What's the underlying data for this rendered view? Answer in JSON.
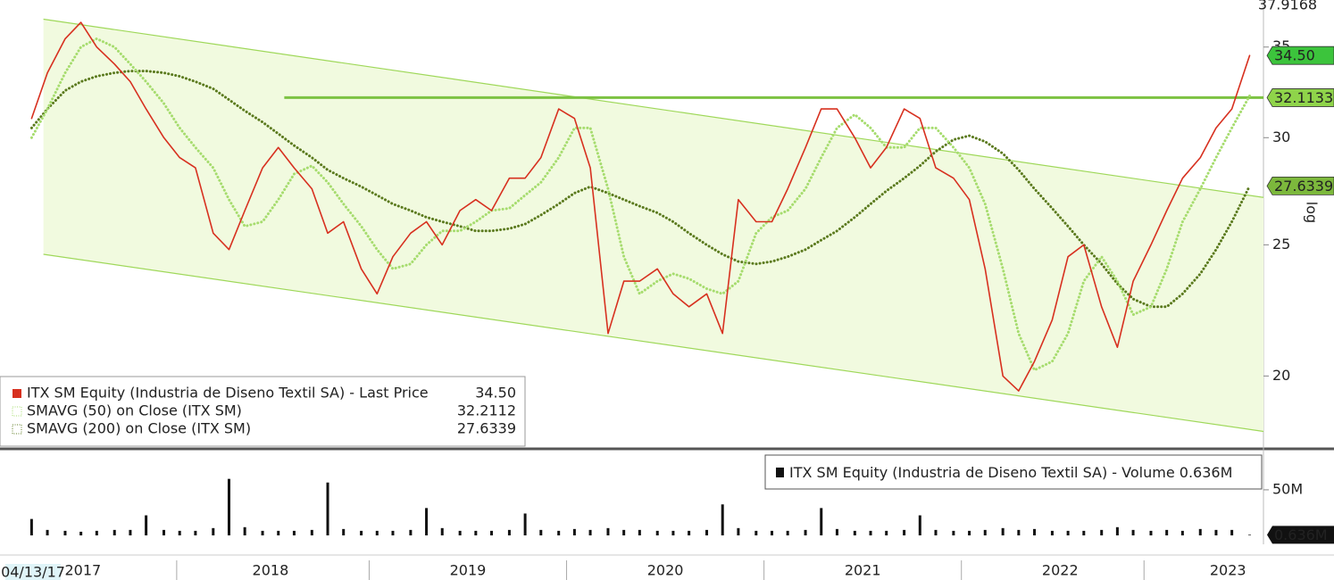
{
  "chart_data": [
    {
      "type": "line",
      "log": true,
      "ylim": [
        17.75,
        37.9168
      ],
      "yticks": [
        20,
        25,
        30,
        35
      ],
      "axis_label": "log",
      "date_label": "04/13/17",
      "xlim": [
        2017.13,
        2023.53
      ],
      "xticks": [
        {
          "value": 2017.55,
          "label": "2017"
        },
        {
          "value": 2018.5,
          "label": "2018"
        },
        {
          "value": 2019.5,
          "label": "2019"
        },
        {
          "value": 2020.5,
          "label": "2020"
        },
        {
          "value": 2021.5,
          "label": "2021"
        },
        {
          "value": 2022.5,
          "label": "2022"
        },
        {
          "value": 2023.35,
          "label": "2023"
        }
      ],
      "x": [
        2017.29,
        2017.37,
        2017.46,
        2017.54,
        2017.62,
        2017.71,
        2017.79,
        2017.87,
        2017.96,
        2018.04,
        2018.12,
        2018.21,
        2018.29,
        2018.37,
        2018.46,
        2018.54,
        2018.62,
        2018.71,
        2018.79,
        2018.87,
        2018.96,
        2019.04,
        2019.12,
        2019.21,
        2019.29,
        2019.37,
        2019.46,
        2019.54,
        2019.62,
        2019.71,
        2019.79,
        2019.87,
        2019.96,
        2020.04,
        2020.12,
        2020.21,
        2020.29,
        2020.37,
        2020.46,
        2020.54,
        2020.62,
        2020.71,
        2020.79,
        2020.87,
        2020.96,
        2021.04,
        2021.12,
        2021.21,
        2021.29,
        2021.37,
        2021.46,
        2021.54,
        2021.62,
        2021.71,
        2021.79,
        2021.87,
        2021.96,
        2022.04,
        2022.12,
        2022.21,
        2022.29,
        2022.37,
        2022.46,
        2022.54,
        2022.62,
        2022.71,
        2022.79,
        2022.87,
        2022.96,
        2023.04,
        2023.12,
        2023.21,
        2023.29,
        2023.37,
        2023.46
      ],
      "series": [
        {
          "name": "ITX SM Equity (Industria de Diseno Textil SA) - Last Price",
          "color": "#d7301f",
          "last_label": "34.50",
          "values": [
            31.0,
            33.5,
            35.5,
            36.5,
            35.0,
            34.0,
            33.0,
            31.5,
            30.0,
            29.0,
            28.5,
            25.5,
            24.8,
            26.5,
            28.5,
            29.5,
            28.5,
            27.5,
            25.5,
            26.0,
            24.0,
            23.0,
            24.5,
            25.5,
            26.0,
            25.0,
            26.5,
            27.0,
            26.5,
            28.0,
            28.0,
            29.0,
            31.5,
            31.0,
            28.5,
            21.5,
            23.5,
            23.5,
            24.0,
            23.0,
            22.5,
            23.0,
            21.5,
            27.0,
            26.0,
            26.0,
            27.5,
            29.5,
            31.5,
            31.5,
            30.0,
            28.5,
            29.5,
            31.5,
            31.0,
            28.5,
            28.0,
            27.0,
            24.0,
            20.0,
            19.5,
            20.5,
            22.0,
            24.5,
            25.0,
            22.5,
            21.0,
            23.5,
            25.0,
            26.5,
            28.0,
            29.0,
            30.5,
            31.5,
            34.5
          ]
        },
        {
          "name": "SMAVG (50)  on Close (ITX SM)",
          "color": "#a6dc6e",
          "last_label": "32.2112",
          "values": [
            30.0,
            31.5,
            33.5,
            35.0,
            35.5,
            35.0,
            34.0,
            33.0,
            31.8,
            30.5,
            29.5,
            28.5,
            27.0,
            25.8,
            26.0,
            27.0,
            28.2,
            28.6,
            27.8,
            26.8,
            25.8,
            24.8,
            24.0,
            24.2,
            25.0,
            25.6,
            25.6,
            26.0,
            26.5,
            26.6,
            27.2,
            27.8,
            29.0,
            30.5,
            30.5,
            27.5,
            24.5,
            23.0,
            23.5,
            23.8,
            23.6,
            23.2,
            23.0,
            23.5,
            25.5,
            26.2,
            26.5,
            27.5,
            29.0,
            30.5,
            31.2,
            30.5,
            29.5,
            29.5,
            30.5,
            30.5,
            29.5,
            28.5,
            26.8,
            24.0,
            21.5,
            20.2,
            20.5,
            21.5,
            23.5,
            24.5,
            23.5,
            22.2,
            22.5,
            24.0,
            26.0,
            27.5,
            29.0,
            30.5,
            32.2112
          ]
        },
        {
          "name": "SMAVG (200)  on Close (ITX SM)",
          "color": "#5b7a1e",
          "last_label": "27.6339",
          "values": [
            30.5,
            31.5,
            32.5,
            33.0,
            33.3,
            33.5,
            33.6,
            33.6,
            33.5,
            33.3,
            33.0,
            32.6,
            32.0,
            31.4,
            30.8,
            30.2,
            29.6,
            29.0,
            28.4,
            28.0,
            27.6,
            27.2,
            26.8,
            26.5,
            26.2,
            26.0,
            25.8,
            25.6,
            25.6,
            25.7,
            25.9,
            26.3,
            26.8,
            27.3,
            27.6,
            27.3,
            27.0,
            26.7,
            26.4,
            26.0,
            25.5,
            25.0,
            24.6,
            24.3,
            24.2,
            24.3,
            24.5,
            24.8,
            25.2,
            25.6,
            26.2,
            26.8,
            27.4,
            28.0,
            28.6,
            29.3,
            29.9,
            30.1,
            29.8,
            29.2,
            28.4,
            27.5,
            26.6,
            25.8,
            25.0,
            24.2,
            23.4,
            22.8,
            22.5,
            22.5,
            23.0,
            23.8,
            24.8,
            26.0,
            27.6339
          ]
        }
      ],
      "level": {
        "value": 32.1133,
        "label": "32.1133",
        "x_start": 2018.57
      },
      "channel": {
        "x": [
          2017.35,
          2023.53
        ],
        "upper": [
          36.7,
          27.1
        ],
        "lower": [
          24.6,
          18.2
        ],
        "color": "#9fd85a",
        "fill": "#f1fadf"
      }
    },
    {
      "type": "bar",
      "ylim": [
        0,
        93
      ],
      "yticks": [
        {
          "value": 50,
          "label": "50M"
        }
      ],
      "xlim": [
        2017.13,
        2023.53
      ],
      "x": [
        2017.29,
        2017.37,
        2017.46,
        2017.54,
        2017.62,
        2017.71,
        2017.79,
        2017.87,
        2017.96,
        2018.04,
        2018.12,
        2018.21,
        2018.29,
        2018.37,
        2018.46,
        2018.54,
        2018.62,
        2018.71,
        2018.79,
        2018.87,
        2018.96,
        2019.04,
        2019.12,
        2019.21,
        2019.29,
        2019.37,
        2019.46,
        2019.54,
        2019.62,
        2019.71,
        2019.79,
        2019.87,
        2019.96,
        2020.04,
        2020.12,
        2020.21,
        2020.29,
        2020.37,
        2020.46,
        2020.54,
        2020.62,
        2020.71,
        2020.79,
        2020.87,
        2020.96,
        2021.04,
        2021.12,
        2021.21,
        2021.29,
        2021.37,
        2021.46,
        2021.54,
        2021.62,
        2021.71,
        2021.79,
        2021.87,
        2021.96,
        2022.04,
        2022.12,
        2022.21,
        2022.29,
        2022.37,
        2022.46,
        2022.54,
        2022.62,
        2022.71,
        2022.79,
        2022.87,
        2022.96,
        2023.04,
        2023.12,
        2023.21,
        2023.29,
        2023.37,
        2023.46
      ],
      "series": [
        {
          "name": "ITX SM Equity (Industria de Diseno Textil SA) - Volume",
          "color": "#111111",
          "last_label": "0.636M",
          "values": [
            18,
            6,
            5,
            4,
            5,
            6,
            6,
            22,
            6,
            5,
            5,
            8,
            62,
            9,
            5,
            5,
            5,
            6,
            58,
            7,
            5,
            5,
            5,
            6,
            30,
            8,
            5,
            5,
            5,
            6,
            24,
            6,
            5,
            7,
            6,
            8,
            6,
            6,
            5,
            5,
            5,
            6,
            34,
            8,
            5,
            5,
            5,
            6,
            30,
            7,
            5,
            5,
            5,
            6,
            22,
            6,
            5,
            5,
            6,
            8,
            6,
            7,
            5,
            5,
            5,
            6,
            9,
            6,
            5,
            6,
            5,
            7,
            6,
            6,
            0.636
          ]
        }
      ]
    }
  ]
}
